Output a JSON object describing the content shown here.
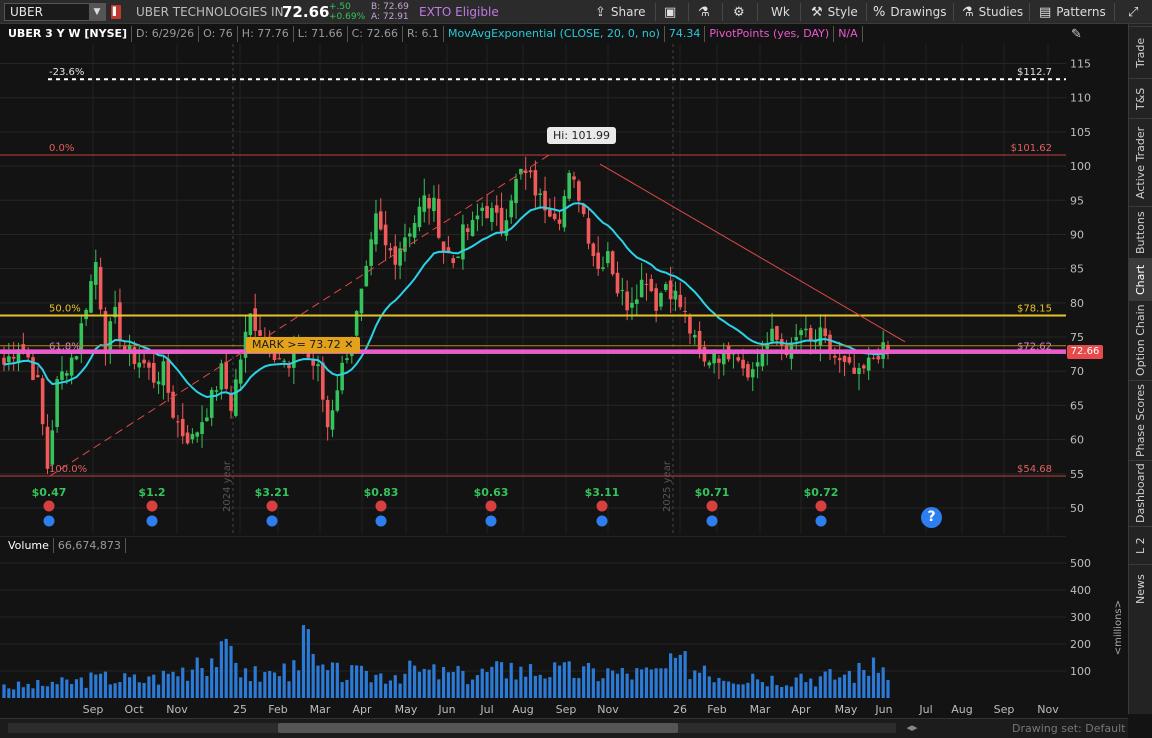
{
  "toolbar": {
    "symbol": "UBER",
    "company": "UBER TECHNOLOGIES IN",
    "last": "72.66",
    "change": "+.50",
    "change_pct": "+0.69%",
    "bid": "B: 72.69",
    "ask": "A: 72.91",
    "exto": "EXTO Eligible",
    "share": "Share",
    "period": "Wk",
    "style": "Style",
    "drawings": "Drawings",
    "studies": "Studies",
    "patterns": "Patterns"
  },
  "header": {
    "symbol": "UBER 3 Y W [NYSE]",
    "date": "D: 6/29/26",
    "open": "O: 76",
    "high": "H: 77.76",
    "low": "L: 71.66",
    "close": "C: 72.66",
    "range": "R: 6.1",
    "study": "MovAvgExponential (CLOSE, 20, 0, no)",
    "study_value": "74.34",
    "pivot": "PivotPoints (yes, DAY)",
    "pivot_value": "N/A"
  },
  "side_tabs": [
    "Trade",
    "T&S",
    "Active Trader",
    "Buttons",
    "Chart",
    "Option Chain",
    "Phase Scores",
    "Dashboard",
    "L 2",
    "News"
  ],
  "active_tab": "Chart",
  "labels": {
    "mark": "MARK >= 73.72 ✕",
    "hi": "Hi: 101.99",
    "price_tag": "72.66",
    "millions": "<millions>",
    "drawing_set": "Drawing set: Default"
  },
  "fib": {
    "levels": [
      {
        "label": "-23.6%",
        "value": 112.7,
        "right": "$112.7"
      },
      {
        "label": "0.0%",
        "value": 101.62,
        "right": "$101.62"
      },
      {
        "label": "50.0%",
        "value": 78.15,
        "right": "$78.15"
      },
      {
        "label": "61.8%",
        "value": 72.62,
        "right": "$72.62"
      },
      {
        "label": "100.0%",
        "value": 54.68,
        "right": "$54.68"
      }
    ]
  },
  "earnings": [
    "$0.47",
    "$1.2",
    "$3.21",
    "$0.83",
    "$0.63",
    "$3.11",
    "$0.71",
    "$0.72"
  ],
  "year_markers": [
    "2024 year",
    "2025 year"
  ],
  "volume": {
    "label": "Volume",
    "value": "66,674,873",
    "ticks": [
      "500",
      "400",
      "300",
      "200",
      "100"
    ]
  },
  "colors": {
    "up": "#35c35b",
    "down": "#f05a5a",
    "ema": "#2ad3e8",
    "fib50": "#e6c229",
    "pivot": "#f058d0",
    "volume": "#2b7bd6"
  },
  "chart_data": {
    "type": "candlestick",
    "y_ticks": [
      115,
      110,
      105,
      100,
      95,
      90,
      85,
      80,
      75,
      70,
      65,
      60,
      55,
      50
    ],
    "ylim": [
      46,
      118
    ],
    "x_labels": [
      "Sep",
      "Oct",
      "Nov",
      "25",
      "Feb",
      "Mar",
      "Apr",
      "May",
      "Jun",
      "Jul",
      "Aug",
      "Sep",
      "Nov",
      "26",
      "Feb",
      "Mar",
      "Apr",
      "May",
      "Jun",
      "Jul",
      "Aug",
      "Sep",
      "Nov"
    ],
    "close_keypoints": [
      [
        0,
        71
      ],
      [
        3,
        74
      ],
      [
        5,
        72
      ],
      [
        7,
        68
      ],
      [
        9,
        56
      ],
      [
        11,
        68
      ],
      [
        13,
        71
      ],
      [
        15,
        73
      ],
      [
        17,
        80
      ],
      [
        19,
        86
      ],
      [
        21,
        74
      ],
      [
        23,
        78
      ],
      [
        25,
        73
      ],
      [
        27,
        72
      ],
      [
        29,
        71
      ],
      [
        31,
        69
      ],
      [
        33,
        70
      ],
      [
        35,
        64
      ],
      [
        37,
        61
      ],
      [
        39,
        60
      ],
      [
        41,
        63
      ],
      [
        43,
        66
      ],
      [
        45,
        70
      ],
      [
        47,
        65
      ],
      [
        49,
        72
      ],
      [
        51,
        78
      ],
      [
        53,
        76
      ],
      [
        55,
        74
      ],
      [
        57,
        72
      ],
      [
        59,
        70
      ],
      [
        61,
        75
      ],
      [
        63,
        72
      ],
      [
        65,
        70
      ],
      [
        67,
        62
      ],
      [
        69,
        68
      ],
      [
        71,
        73
      ],
      [
        73,
        78
      ],
      [
        75,
        84
      ],
      [
        77,
        92
      ],
      [
        79,
        88
      ],
      [
        81,
        87
      ],
      [
        83,
        90
      ],
      [
        85,
        92
      ],
      [
        87,
        95
      ],
      [
        89,
        94
      ],
      [
        91,
        88
      ],
      [
        93,
        86
      ],
      [
        95,
        90
      ],
      [
        97,
        91
      ],
      [
        99,
        94
      ],
      [
        101,
        93
      ],
      [
        103,
        91
      ],
      [
        105,
        96
      ],
      [
        107,
        99
      ],
      [
        109,
        98
      ],
      [
        111,
        95
      ],
      [
        113,
        94
      ],
      [
        115,
        93
      ],
      [
        117,
        98
      ],
      [
        119,
        96
      ],
      [
        121,
        90
      ],
      [
        123,
        85
      ],
      [
        125,
        88
      ],
      [
        127,
        82
      ],
      [
        129,
        80
      ],
      [
        131,
        82
      ],
      [
        133,
        84
      ],
      [
        135,
        80
      ],
      [
        137,
        83
      ],
      [
        139,
        81
      ],
      [
        141,
        78
      ],
      [
        143,
        74
      ],
      [
        145,
        71
      ],
      [
        147,
        73
      ],
      [
        149,
        72
      ],
      [
        151,
        74
      ],
      [
        153,
        71
      ],
      [
        155,
        70
      ],
      [
        157,
        73
      ],
      [
        159,
        75
      ],
      [
        161,
        74
      ],
      [
        163,
        73
      ],
      [
        165,
        76
      ],
      [
        167,
        74
      ],
      [
        169,
        75
      ],
      [
        171,
        73
      ],
      [
        173,
        71
      ],
      [
        175,
        70
      ],
      [
        177,
        69
      ],
      [
        179,
        71
      ],
      [
        181,
        73
      ],
      [
        183,
        72.66
      ]
    ],
    "volume_keypoints": [
      [
        0,
        50
      ],
      [
        10,
        60
      ],
      [
        20,
        90
      ],
      [
        30,
        80
      ],
      [
        40,
        150
      ],
      [
        45,
        210
      ],
      [
        50,
        110
      ],
      [
        55,
        100
      ],
      [
        60,
        140
      ],
      [
        62,
        270
      ],
      [
        65,
        120
      ],
      [
        75,
        100
      ],
      [
        85,
        120
      ],
      [
        95,
        100
      ],
      [
        105,
        130
      ],
      [
        115,
        120
      ],
      [
        125,
        110
      ],
      [
        135,
        110
      ],
      [
        140,
        160
      ],
      [
        145,
        120
      ],
      [
        155,
        90
      ],
      [
        165,
        90
      ],
      [
        175,
        100
      ],
      [
        180,
        150
      ],
      [
        183,
        67
      ]
    ]
  }
}
